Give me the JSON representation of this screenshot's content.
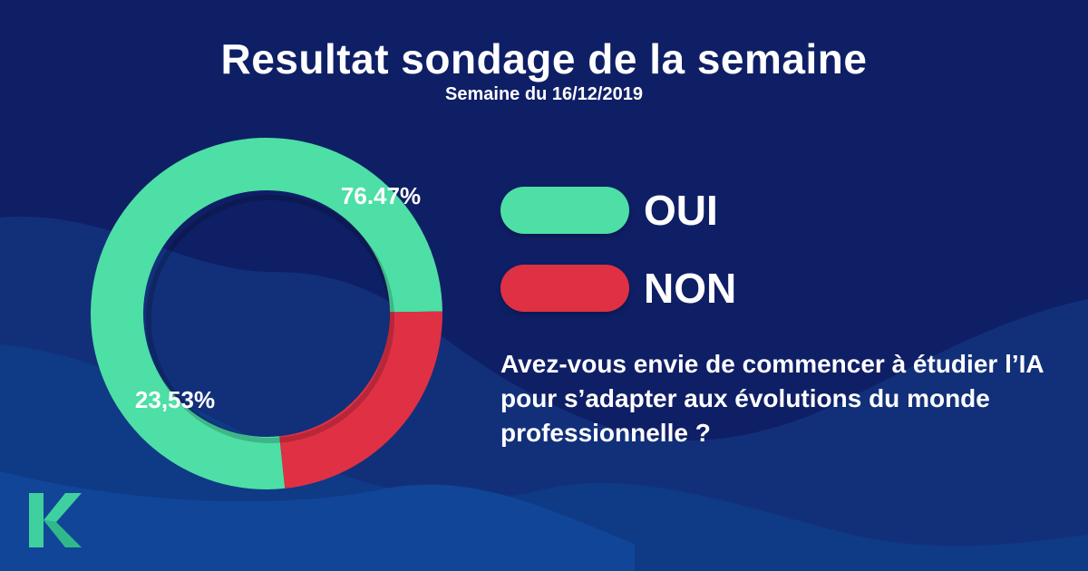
{
  "title": "Resultat sondage de la semaine",
  "subtitle": "Semaine du 16/12/2019",
  "question": "Avez-vous envie de commencer à étudier l’IA pour s’adapter aux évolutions du monde professionnelle ?",
  "colors": {
    "background": "#0f1f66",
    "oui": "#4ddfa5",
    "non": "#e03044",
    "text": "#ffffff"
  },
  "logo_icon": "k-logo-icon",
  "chart_data": {
    "type": "pie",
    "donut": true,
    "title": "",
    "slices": [
      {
        "label": "OUI",
        "value": 76.47,
        "data_label": "76.47%",
        "color": "#4ddfa5"
      },
      {
        "label": "NON",
        "value": 23.53,
        "data_label": "23,53%",
        "color": "#e03044"
      }
    ],
    "legend": "right"
  }
}
